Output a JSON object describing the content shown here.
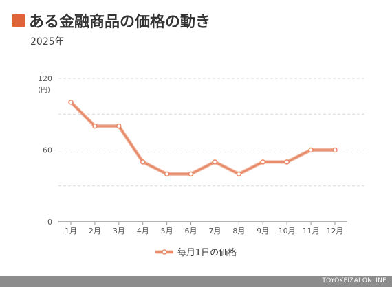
{
  "colors": {
    "accent": "#e0643a",
    "line": "#e8896a",
    "line_outer": "#f0b79e",
    "grid": "#d9d9d9",
    "axis": "#999999",
    "footer_bg": "#8c8c8c"
  },
  "header": {
    "title": "ある金融商品の価格の動き",
    "subtitle": "2025年"
  },
  "footer": {
    "text": "TOYOKEIZAI ONLINE"
  },
  "chart_data": {
    "type": "line",
    "title": "ある金融商品の価格の動き",
    "subtitle": "2025年",
    "ylabel_unit": "(円)",
    "categories": [
      "1月",
      "2月",
      "3月",
      "4月",
      "5月",
      "6月",
      "7月",
      "8月",
      "9月",
      "10月",
      "11月",
      "12月"
    ],
    "series": [
      {
        "name": "毎月1日の価格",
        "values": [
          100,
          80,
          80,
          50,
          40,
          40,
          50,
          40,
          50,
          50,
          60,
          60
        ]
      }
    ],
    "y_ticks": [
      "0",
      "60",
      "120"
    ],
    "ylim": [
      0,
      120
    ],
    "grid": true,
    "legend_position": "bottom-center"
  }
}
